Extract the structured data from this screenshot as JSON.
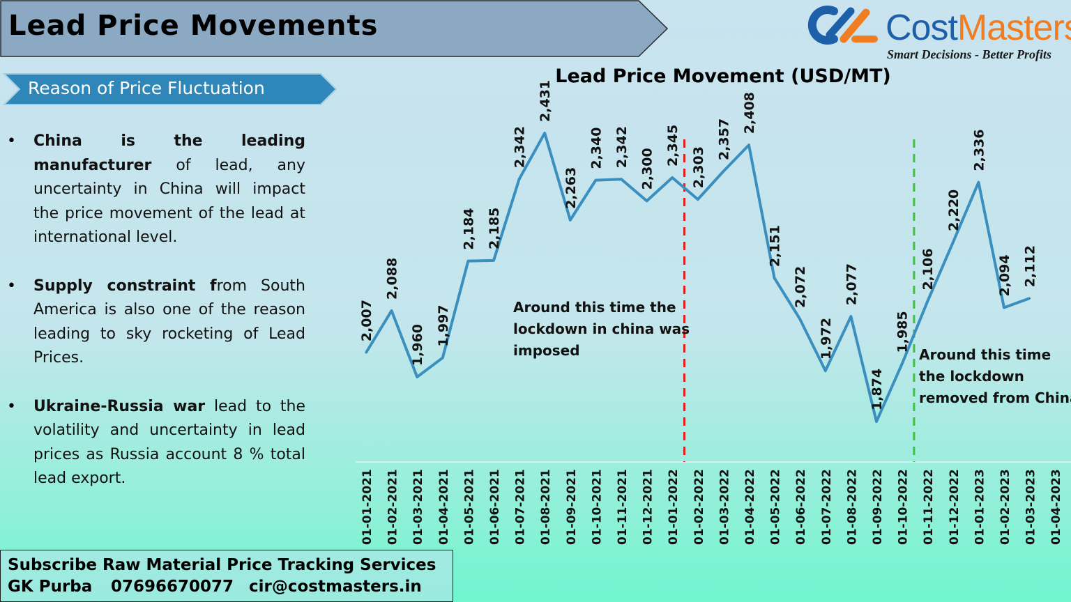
{
  "header": {
    "title": "Lead Price Movements"
  },
  "logo": {
    "name_part1": "Cost",
    "name_part2": "Masters",
    "tagline": "Smart Decisions - Better Profits"
  },
  "section": {
    "title": "Reason of Price Fluctuation"
  },
  "bullets": [
    {
      "bold": "China is the leading manufacturer",
      "text": " of lead, any uncertainty in China will impact the price movement of the lead at international level."
    },
    {
      "bold": "Supply constraint f",
      "text": "rom South America is also one of the reason leading to sky rocketing of Lead Prices."
    },
    {
      "bold": "Ukraine-Russia war",
      "text": " lead to the volatility and uncertainty in lead prices as Russia account 8 % total lead export."
    }
  ],
  "footer": {
    "line1": "Subscribe Raw Material Price Tracking Services",
    "name": "GK Purba",
    "phone": "07696670077",
    "email": "cir@costmasters.in"
  },
  "colors": {
    "line": "#3a8fbf",
    "lockdown_start": "#e02020",
    "lockdown_end": "#3cc43c",
    "brand_blue": "#1d5fa8",
    "brand_orange": "#f07d22"
  },
  "chart_data": {
    "type": "line",
    "title": "Lead Price Movement  (USD/MT)",
    "categories": [
      "01-01-2021",
      "01-02-2021",
      "01-03-2021",
      "01-04-2021",
      "01-05-2021",
      "01-06-2021",
      "01-07-2021",
      "01-08-2021",
      "01-09-2021",
      "01-10-2021",
      "01-11-2021",
      "01-12-2021",
      "01-01-2022",
      "01-02-2022",
      "01-03-2022",
      "01-04-2022",
      "01-05-2022",
      "01-06-2022",
      "01-07-2022",
      "01-08-2022",
      "01-09-2022",
      "01-10-2022",
      "01-11-2022",
      "01-12-2022",
      "01-01-2023",
      "01-02-2023",
      "01-03-2023",
      "01-04-2023"
    ],
    "values": [
      2007,
      2088,
      1960,
      1997,
      2184,
      2185,
      2342,
      2431,
      2263,
      2340,
      2342,
      2300,
      2345,
      2303,
      2357,
      2408,
      2151,
      2072,
      1972,
      2077,
      1874,
      1985,
      2106,
      2220,
      2336,
      2094,
      2112,
      null
    ],
    "value_labels": [
      "2,007",
      "2,088",
      "1,960",
      "1,997",
      "2,184",
      "2,185",
      "2,342",
      "2,431",
      "2,263",
      "2,340",
      "2,342",
      "2,300",
      "2,345",
      "2,303",
      "2,357",
      "2,408",
      "2,151",
      "2,072",
      "1,972",
      "2,077",
      "1,874",
      "1,985",
      "2,106",
      "2,220",
      "2,336",
      "2,094",
      "2,112",
      ""
    ],
    "ylim": [
      1800,
      2450
    ],
    "y_axis_shown": false,
    "grid": false,
    "annotations": [
      {
        "text_lines": [
          "Around this time the",
          "lockdown in china was",
          "imposed"
        ],
        "at_category": "01-01-2022",
        "color": "#e02020",
        "style": "dashed"
      },
      {
        "text_lines": [
          "Around this time",
          "the lockdown",
          "removed from China"
        ],
        "at_category": "01-10-2022",
        "color": "#3cc43c",
        "style": "dashed"
      }
    ]
  }
}
